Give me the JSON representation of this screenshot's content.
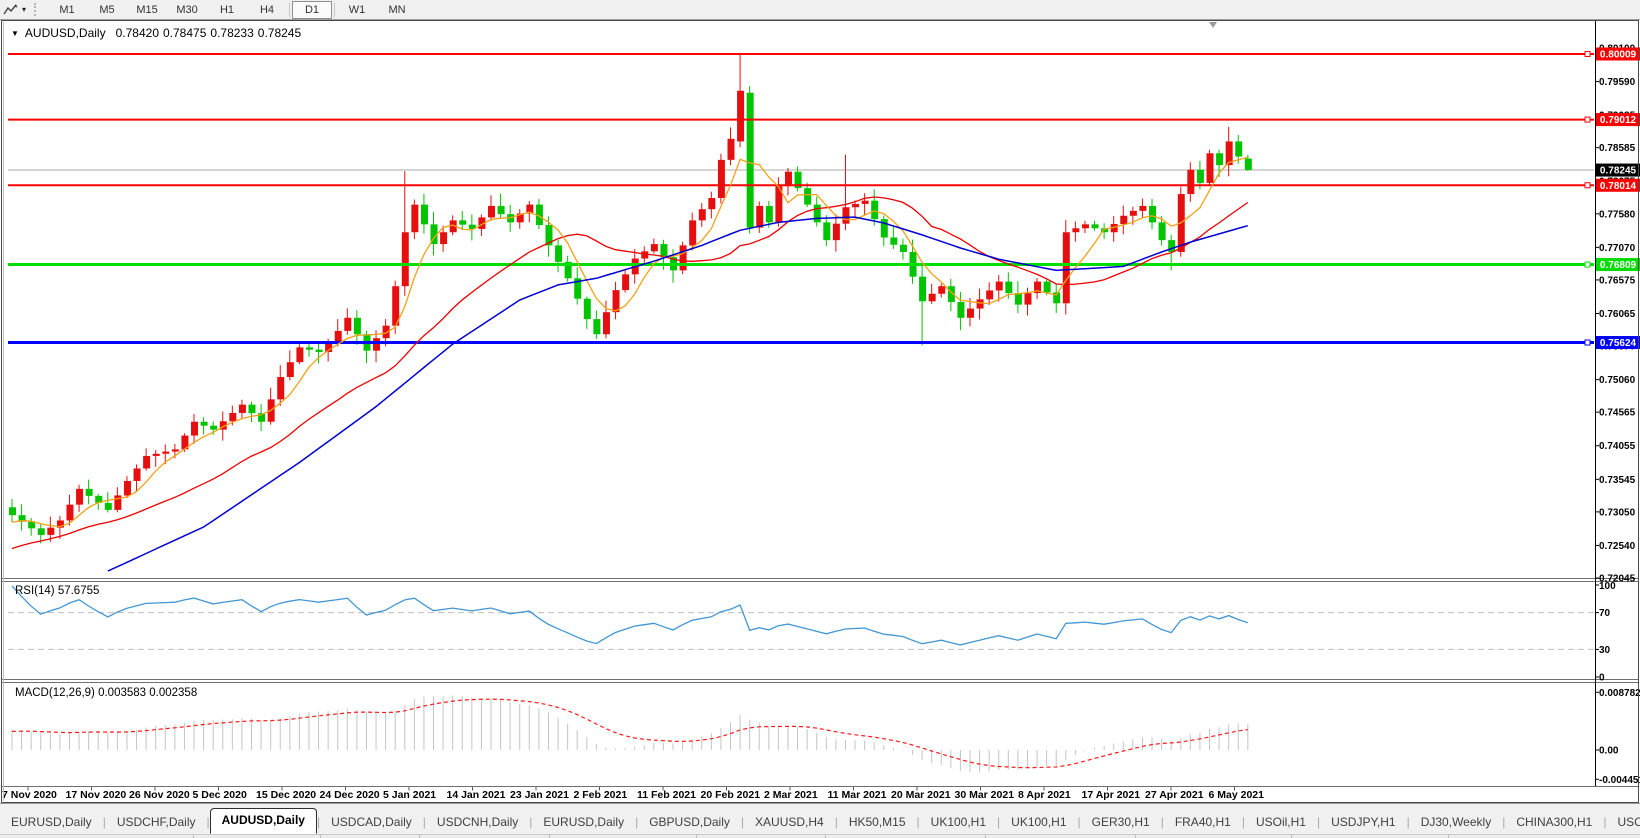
{
  "ui": {
    "toolbar": {
      "tool_icon": "chart-line-tool",
      "dropdown_caret": "▾",
      "timeframes": [
        {
          "label": "M1",
          "active": false
        },
        {
          "label": "M5",
          "active": false
        },
        {
          "label": "M15",
          "active": false
        },
        {
          "label": "M30",
          "active": false
        },
        {
          "label": "H1",
          "active": false
        },
        {
          "label": "H4",
          "active": false
        },
        {
          "label": "D1",
          "active": true
        },
        {
          "label": "W1",
          "active": false
        },
        {
          "label": "MN",
          "active": false
        }
      ]
    },
    "chart_title": {
      "dropdown": "▼",
      "symbol": "AUDUSD,Daily",
      "open": "0.78420",
      "high": "0.78475",
      "low": "0.78233",
      "close": "0.78245"
    },
    "rsi_label": "RSI(14) 57.6755",
    "macd_label": "MACD(12,26,9) 0.003583 0.002358",
    "tabs": [
      {
        "label": "EURUSD,Daily",
        "active": false
      },
      {
        "label": "USDCHF,Daily",
        "active": false
      },
      {
        "label": "AUDUSD,Daily",
        "active": true
      },
      {
        "label": "USDCAD,Daily",
        "active": false
      },
      {
        "label": "USDCNH,Daily",
        "active": false
      },
      {
        "label": "EURUSD,Daily",
        "active": false
      },
      {
        "label": "GBPUSD,Daily",
        "active": false
      },
      {
        "label": "XAUUSD,H4",
        "active": false
      },
      {
        "label": "HK50,M15",
        "active": false
      },
      {
        "label": "UK100,H1",
        "active": false
      },
      {
        "label": "UK100,H1",
        "active": false
      },
      {
        "label": "GER30,H1",
        "active": false
      },
      {
        "label": "FRA40,H1",
        "active": false
      },
      {
        "label": "USOil,H1",
        "active": false
      },
      {
        "label": "USDJPY,H1",
        "active": false
      },
      {
        "label": "DJ30,Weekly",
        "active": false
      },
      {
        "label": "CHINA300,H1",
        "active": false
      },
      {
        "label": "USC",
        "active": false
      }
    ],
    "tab_scroll": {
      "left": "◂",
      "right": "▸"
    }
  },
  "chart_data": {
    "type": "candlestick",
    "symbol": "AUDUSD",
    "timeframe": "Daily",
    "last_ohlc": {
      "open": 0.7842,
      "high": 0.78475,
      "low": 0.78233,
      "close": 0.78245
    },
    "price_axis": {
      "top": 0.801,
      "bottom": 0.72045,
      "ticks": [
        0.801,
        0.7959,
        0.79085,
        0.78585,
        0.78075,
        0.7758,
        0.7707,
        0.76575,
        0.76065,
        0.7557,
        0.7506,
        0.74565,
        0.74055,
        0.73545,
        0.7305,
        0.7254,
        0.72045
      ]
    },
    "date_labels": [
      "7 Nov 2020",
      "17 Nov 2020",
      "26 Nov 2020",
      "5 Dec 2020",
      "15 Dec 2020",
      "24 Dec 2020",
      "5 Jan 2021",
      "14 Jan 2021",
      "23 Jan 2021",
      "2 Feb 2021",
      "11 Feb 2021",
      "20 Feb 2021",
      "2 Mar 2021",
      "11 Mar 2021",
      "20 Mar 2021",
      "30 Mar 2021",
      "8 Apr 2021",
      "17 Apr 2021",
      "27 Apr 2021",
      "6 May 2021"
    ],
    "candles": {
      "count": 130,
      "up_color": "#e60f0f",
      "down_color": "#00c400",
      "close_waypoints": [
        [
          0,
          0.73
        ],
        [
          3,
          0.727
        ],
        [
          5,
          0.7292
        ],
        [
          7,
          0.734
        ],
        [
          10,
          0.7308
        ],
        [
          12,
          0.7352
        ],
        [
          14,
          0.739
        ],
        [
          17,
          0.74
        ],
        [
          19,
          0.7442
        ],
        [
          21,
          0.743
        ],
        [
          24,
          0.7468
        ],
        [
          26,
          0.7442
        ],
        [
          28,
          0.751
        ],
        [
          30,
          0.7555
        ],
        [
          32,
          0.7548
        ],
        [
          34,
          0.758
        ],
        [
          35,
          0.76
        ],
        [
          37,
          0.755
        ],
        [
          39,
          0.7588
        ],
        [
          40,
          0.7648
        ],
        [
          41,
          0.773
        ],
        [
          42,
          0.7772
        ],
        [
          44,
          0.7712
        ],
        [
          46,
          0.7748
        ],
        [
          48,
          0.7735
        ],
        [
          50,
          0.777
        ],
        [
          52,
          0.7745
        ],
        [
          54,
          0.7772
        ],
        [
          56,
          0.771
        ],
        [
          58,
          0.766
        ],
        [
          60,
          0.7598
        ],
        [
          61,
          0.7575
        ],
        [
          63,
          0.7642
        ],
        [
          65,
          0.769
        ],
        [
          67,
          0.7712
        ],
        [
          69,
          0.7672
        ],
        [
          71,
          0.7748
        ],
        [
          73,
          0.7782
        ],
        [
          74,
          0.784
        ],
        [
          75,
          0.7872
        ],
        [
          76,
          0.7945
        ],
        [
          77,
          0.7737
        ],
        [
          78,
          0.777
        ],
        [
          79,
          0.7745
        ],
        [
          80,
          0.78
        ],
        [
          81,
          0.7822
        ],
        [
          83,
          0.7772
        ],
        [
          85,
          0.7718
        ],
        [
          87,
          0.7768
        ],
        [
          89,
          0.7778
        ],
        [
          91,
          0.7722
        ],
        [
          93,
          0.77
        ],
        [
          95,
          0.7625
        ],
        [
          97,
          0.7648
        ],
        [
          99,
          0.76
        ],
        [
          101,
          0.7628
        ],
        [
          103,
          0.7655
        ],
        [
          105,
          0.762
        ],
        [
          107,
          0.7655
        ],
        [
          109,
          0.7622
        ],
        [
          110,
          0.773
        ],
        [
          112,
          0.7742
        ],
        [
          114,
          0.773
        ],
        [
          116,
          0.7755
        ],
        [
          118,
          0.777
        ],
        [
          119,
          0.7745
        ],
        [
          120,
          0.7718
        ],
        [
          121,
          0.77
        ],
        [
          122,
          0.7788
        ],
        [
          123,
          0.7825
        ],
        [
          124,
          0.7805
        ],
        [
          125,
          0.785
        ],
        [
          126,
          0.7832
        ],
        [
          127,
          0.7868
        ],
        [
          128,
          0.7845
        ],
        [
          129,
          0.78245
        ]
      ],
      "overrides": [
        {
          "i": 41,
          "h": 0.7823
        },
        {
          "i": 61,
          "l": 0.7568
        },
        {
          "i": 76,
          "o": 0.7868,
          "h": 0.80009
        },
        {
          "i": 77,
          "o": 0.7942,
          "h": 0.7952,
          "l": 0.7728
        },
        {
          "i": 87,
          "h": 0.7848
        },
        {
          "i": 95,
          "l": 0.7558
        },
        {
          "i": 121,
          "l": 0.7672
        },
        {
          "i": 127,
          "h": 0.789
        },
        {
          "i": 129,
          "o": 0.7842,
          "h": 0.78475,
          "l": 0.78233,
          "c": 0.78245
        }
      ]
    },
    "moving_averages": {
      "fast": {
        "period": 5,
        "color": "#f2a114"
      },
      "mid": {
        "period": 20,
        "color": "#ee0000"
      },
      "slow": {
        "color": "#0000d2",
        "waypoints": [
          [
            10,
            0.7215
          ],
          [
            20,
            0.7282
          ],
          [
            30,
            0.738
          ],
          [
            38,
            0.7465
          ],
          [
            46,
            0.756
          ],
          [
            53,
            0.7627
          ],
          [
            57,
            0.765
          ],
          [
            61,
            0.766
          ],
          [
            67,
            0.7686
          ],
          [
            72,
            0.771
          ],
          [
            76,
            0.7733
          ],
          [
            80,
            0.7745
          ],
          [
            84,
            0.7751
          ],
          [
            88,
            0.7753
          ],
          [
            91,
            0.7744
          ],
          [
            95,
            0.7726
          ],
          [
            99,
            0.7706
          ],
          [
            103,
            0.7689
          ],
          [
            109,
            0.7672
          ],
          [
            116,
            0.7678
          ],
          [
            120,
            0.77
          ],
          [
            123,
            0.7715
          ],
          [
            129,
            0.774
          ]
        ]
      }
    },
    "hlines": [
      {
        "price": 0.80009,
        "color": "#ff0000",
        "width": 2
      },
      {
        "price": 0.79012,
        "color": "#ff0000",
        "width": 2
      },
      {
        "price": 0.78014,
        "color": "#ff0000",
        "width": 2
      },
      {
        "price": 0.76809,
        "color": "#00dd00",
        "width": 3
      },
      {
        "price": 0.75624,
        "color": "#0000ff",
        "width": 3
      }
    ],
    "current_price": {
      "price": 0.78245,
      "line_color": "#ababab",
      "badge_bg": "#000000"
    },
    "rsi": {
      "period": 14,
      "value": 57.6755,
      "levels": [
        70,
        30
      ],
      "scale_labels": [
        "100",
        "70",
        "30",
        "0"
      ],
      "color": "#4296d2"
    },
    "macd": {
      "fast": 12,
      "slow": 26,
      "signal_period": 9,
      "value": 0.003583,
      "signal_value": 0.002358,
      "scale_max": 0.008782,
      "scale_min": -0.004451,
      "scale_labels": {
        "max": "0.008782",
        "zero": "0.00",
        "min": "-0.004451"
      },
      "hist_color": "#c4c4c4",
      "signal_color": "#ff1a1a"
    }
  }
}
